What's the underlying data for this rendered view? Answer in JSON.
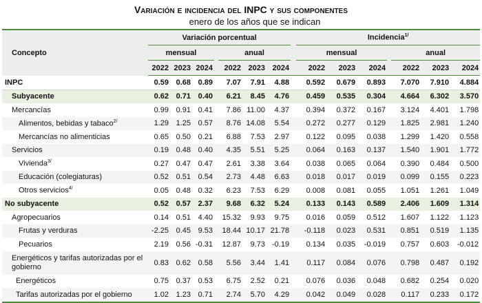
{
  "title": "Variación e incidencia del INPC y sus componentes",
  "subtitle": "enero de los años que se indican",
  "table": {
    "header": {
      "concept": "Concepto",
      "groups": [
        {
          "label": "Variación porcentual"
        },
        {
          "label": "Incidencia",
          "note": "1/"
        }
      ],
      "subgroups": [
        "mensual",
        "anual",
        "mensual",
        "anual"
      ],
      "years": [
        "2022",
        "2023",
        "2024",
        "2022",
        "2023",
        "2024",
        "2022",
        "2023",
        "2024",
        "2022",
        "2023",
        "2024"
      ]
    },
    "rows": [
      {
        "label": "INPC",
        "values": [
          "0.59",
          "0.68",
          "0.89",
          "7.07",
          "7.91",
          "4.88",
          "0.592",
          "0.679",
          "0.893",
          "7.070",
          "7.910",
          "4.884"
        ]
      },
      {
        "label": "Subyacente",
        "values": [
          "0.62",
          "0.71",
          "0.40",
          "6.21",
          "8.45",
          "4.76",
          "0.459",
          "0.535",
          "0.304",
          "4.664",
          "6.302",
          "3.570"
        ]
      },
      {
        "label": "Mercancías",
        "values": [
          "0.99",
          "0.91",
          "0.41",
          "7.86",
          "11.00",
          "4.37",
          "0.394",
          "0.372",
          "0.167",
          "3.124",
          "4.401",
          "1.798"
        ]
      },
      {
        "label": "Alimentos, bebidas y tabaco",
        "note": "2/",
        "values": [
          "1.29",
          "1.25",
          "0.57",
          "8.76",
          "14.08",
          "5.54",
          "0.272",
          "0.277",
          "0.129",
          "1.825",
          "2.981",
          "1.240"
        ]
      },
      {
        "label": "Mercancías no alimenticias",
        "values": [
          "0.65",
          "0.50",
          "0.21",
          "6.88",
          "7.53",
          "2.97",
          "0.122",
          "0.095",
          "0.038",
          "1.299",
          "1.420",
          "0.558"
        ]
      },
      {
        "label": "Servicios",
        "values": [
          "0.19",
          "0.48",
          "0.40",
          "4.35",
          "5.51",
          "5.25",
          "0.064",
          "0.163",
          "0.137",
          "1.540",
          "1.901",
          "1.772"
        ]
      },
      {
        "label": "Vivienda",
        "note": "3/",
        "values": [
          "0.27",
          "0.47",
          "0.47",
          "2.61",
          "3.38",
          "3.64",
          "0.038",
          "0.065",
          "0.064",
          "0.390",
          "0.484",
          "0.500"
        ]
      },
      {
        "label": "Educación (colegiaturas)",
        "values": [
          "0.52",
          "0.51",
          "0.54",
          "2.73",
          "4.48",
          "6.63",
          "0.018",
          "0.017",
          "0.019",
          "0.099",
          "0.155",
          "0.223"
        ]
      },
      {
        "label": "Otros servicios",
        "note": "4/",
        "values": [
          "0.05",
          "0.48",
          "0.32",
          "6.23",
          "7.53",
          "6.29",
          "0.008",
          "0.081",
          "0.055",
          "1.051",
          "1.261",
          "1.049"
        ]
      },
      {
        "label": "No subyacente",
        "values": [
          "0.52",
          "0.57",
          "2.37",
          "9.68",
          "6.32",
          "5.24",
          "0.133",
          "0.143",
          "0.589",
          "2.406",
          "1.609",
          "1.314"
        ]
      },
      {
        "label": "Agropecuarios",
        "values": [
          "0.14",
          "0.51",
          "4.40",
          "15.32",
          "9.93",
          "9.75",
          "0.016",
          "0.059",
          "0.512",
          "1.607",
          "1.122",
          "1.123"
        ]
      },
      {
        "label": "Frutas y verduras",
        "values": [
          "-2.25",
          "0.45",
          "9.53",
          "18.44",
          "10.17",
          "21.78",
          "-0.118",
          "0.023",
          "0.531",
          "0.851",
          "0.519",
          "1.135"
        ]
      },
      {
        "label": "Pecuarios",
        "values": [
          "2.19",
          "0.56",
          "-0.31",
          "12.87",
          "9.73",
          "-0.19",
          "0.134",
          "0.035",
          "-0.019",
          "0.757",
          "0.603",
          "-0.012"
        ]
      },
      {
        "label": "Energéticos y tarifas autorizadas por el gobierno",
        "values": [
          "0.83",
          "0.62",
          "0.58",
          "5.56",
          "3.44",
          "1.41",
          "0.117",
          "0.084",
          "0.076",
          "0.798",
          "0.487",
          "0.192"
        ]
      },
      {
        "label": "Energéticos",
        "values": [
          "0.75",
          "0.37",
          "0.53",
          "6.75",
          "2.52",
          "0.21",
          "0.076",
          "0.036",
          "0.048",
          "0.682",
          "0.254",
          "0.020"
        ]
      },
      {
        "label": "Tarifas autorizadas por el gobierno",
        "values": [
          "1.02",
          "1.23",
          "0.71",
          "2.74",
          "5.70",
          "4.29",
          "0.042",
          "0.049",
          "0.028",
          "0.117",
          "0.233",
          "0.172"
        ]
      }
    ]
  }
}
